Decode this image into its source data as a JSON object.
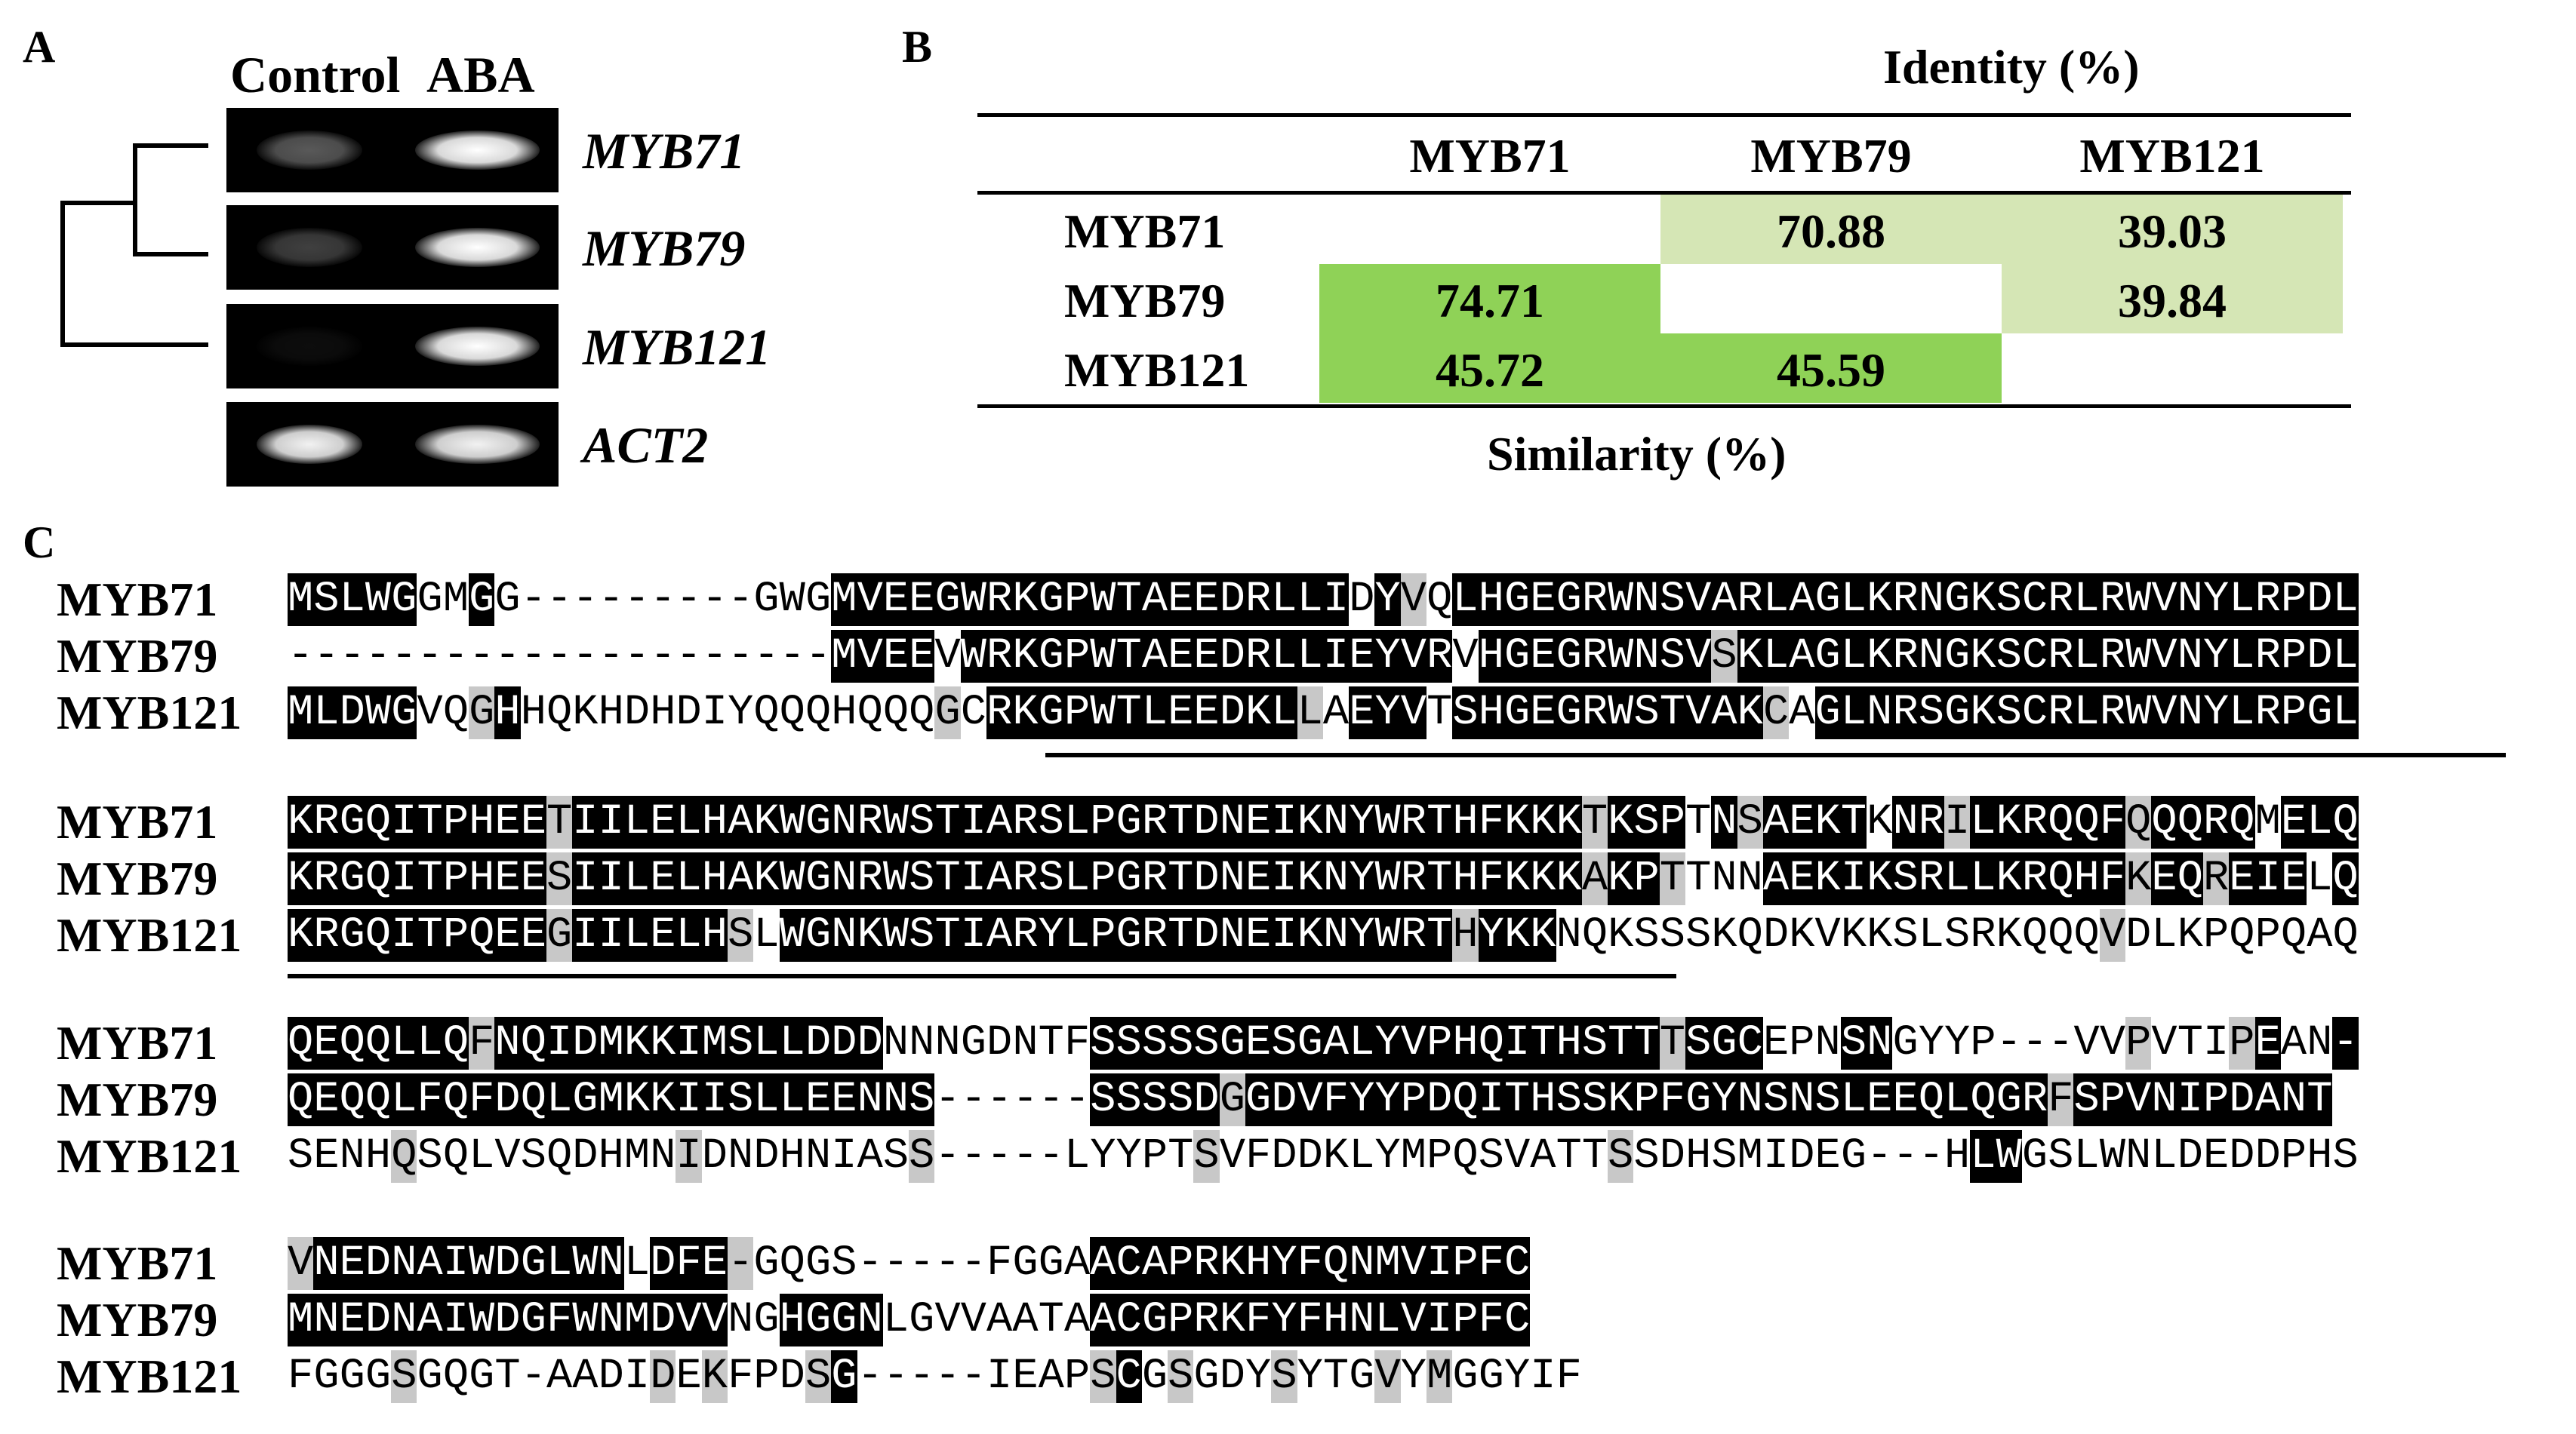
{
  "panels": {
    "a": "A",
    "b": "B",
    "c": "C"
  },
  "gel": {
    "col_control": "Control",
    "col_aba": "ABA",
    "genes": [
      "MYB71",
      "MYB79",
      "MYB121",
      "ACT2"
    ],
    "band_intensity_control": [
      0.35,
      0.25,
      0.05,
      0.95
    ],
    "band_intensity_aba": [
      1.0,
      1.0,
      1.0,
      0.95
    ]
  },
  "matrix": {
    "identity_label": "Identity (%)",
    "similarity_label": "Similarity (%)",
    "headers": [
      "MYB71",
      "MYB79",
      "MYB121"
    ],
    "rows": [
      {
        "name": "MYB71",
        "cells": [
          "",
          "70.88",
          "39.03"
        ]
      },
      {
        "name": "MYB79",
        "cells": [
          "74.71",
          "",
          "39.84"
        ]
      },
      {
        "name": "MYB121",
        "cells": [
          "45.72",
          "45.59",
          ""
        ]
      }
    ],
    "colors": {
      "identity": "#d5e6b5",
      "similarity": "#8fd257"
    }
  },
  "alignment": {
    "names": [
      "MYB71",
      "MYB79",
      "MYB121"
    ],
    "blocks": [
      {
        "seqs": [
          "MSLWGGMGG---------GWGMVEEGWRKGPWTAEEDRLLIDYVQLHGEGRWNSVARLAGLKRNGKSCRLRWVNYLRPDL",
          "---------------------MVEEVWRKGPWTAEEDRLLIEYVRVHGEGRWNSVSKLAGLKRNGKSCRLRWVNYLRPDL",
          "MLDWGVQGHHQKHDHDIYQQQHQQQGCRKGPWTLEEDKLLAEYVTSHGEGRWSTVAKCAGLNRSGKSCRLRWVNYLRPGL"
        ],
        "marks": [
          "iiiiinnin---------nnniiiiiiiiiiiiiiiiiiiinisniiiiiiiiiiiiiiiiiiiiiiiiiiiiiiiiiii",
          "---------------------iiiiniiiiiiiiiiiiiiiiiiiniiiiiiiiisiiiiiiiiiiiiiiiiiiiiiiiii",
          "iiiiinnsinnnnnnnnnnnnnnnnsniiiiiiiiiiiisniiiniiiiiiiiiiiisniiiiiiiiiiiiiiiiiiiiiii"
        ]
      },
      {
        "seqs": [
          "KRGQITPHEETIILELHAKWGNRWSTIARSLPGRTDNEIKNYWRTHFKKKTKSPTNSAEKTKNRILKRQQFQQQRQMELQ",
          "KRGQITPHEESIILELHAKWGNRWSTIARSLPGRTDNEIKNYWRTHFKKKAKPTTNNAEKIKSRLLKRQHFKEQREIELQ",
          "KRGQITPQEEGIILELHSLWGNKWSTIARYLPGRTDNEIKNYWRTHYKKNQKSSSKQDKVKKSLSRKQQQVDLKPQPQAQ"
        ],
        "marks": [
          "iiiiiiiiiisiiiiiiiiiiiiiiiiiiiiiiiiiiiiiiiiiiiiiiisiiinisiiiiniisiiiiiisiiiiniiii",
          "iiiiiiiiiisiiiiiiiiiiiiiiiiiiiiiiiiiiiiiiiiiiiiiiisiisnnniiiiiiiiiiiiiisiisiiiniii",
          "iiiiiiiiiisiiiiiisniiiiiiiiiiiiiiiiiiiiiiiiiisiiinnnnnnnnnnnnnnnnnnnnnsnnnnnnnnnn"
        ]
      },
      {
        "seqs": [
          "QEQQLLQFNQIDMKKIMSLLDDDNNNGDNTFSSSSSGESGALYVPHQITHSTTTSGCEPNSNGYYP---VVPVTIPEAN-",
          "QEQQLFQFDQLGMKKIISLLEENNS------SSSSDGGDVFYYPDQITHSSKPFGYNSNSLEEQLQGRFSPVNIPDANT",
          "SENHQSQLVSQDHMNIDNDHNIASS-----LYYPTSVFDDKLYMPQSVATTSSDHSMIDEG---HLWGSLWNLDEDDPHS"
        ],
        "marks": [
          "iiiiiiisiiiiiiiiiiiiiiinnnnnnnniiiiiiiiiiiiiiiiiiiiiisiiinnniinnnnnn---snnnsinnii-",
          "iiiiiiiiiiiiiiiiiiiiiiiii------iiiiisiiiiiiiiiiiiiiiiiiiiiiiiiiiiiiisiiiiiiiiiiii",
          "nnnnsnnnnnnnnnnsnnnnnnnns-----nnnnnsnnnnnnnnnnnnnnnsnnnnnnnnnn---iinnnnnnnnnnnnns"
        ]
      },
      {
        "seqs": [
          "VNEDNAIWDGLWNLDFE-GQGS-----FGGAACAPRKHYFQNMVIPFC",
          "MNEDNAIWDGFWNMDVVNGHGGNLGVVAATAACGPRKFYFHNLVIPFC",
          "FGGGSGQGT-AADIDEKFPDSG-----IEAPSCGSGDYSYTGVYMGGYIF"
        ],
        "marks": [
          "siiiiiiiiiiiiniiis-nnnn-----nnniiiiiiiiiiiiiiiiii",
          "iiiiiiiiiiiiiiiiinniiiinnnnnnnniiiiiiiiiiiiiiiiii",
          "nnnnsnnnn-nnnnsnsnnnsi-----nnnnsinsnnnsnnnsnsnnnnn"
        ]
      }
    ]
  }
}
